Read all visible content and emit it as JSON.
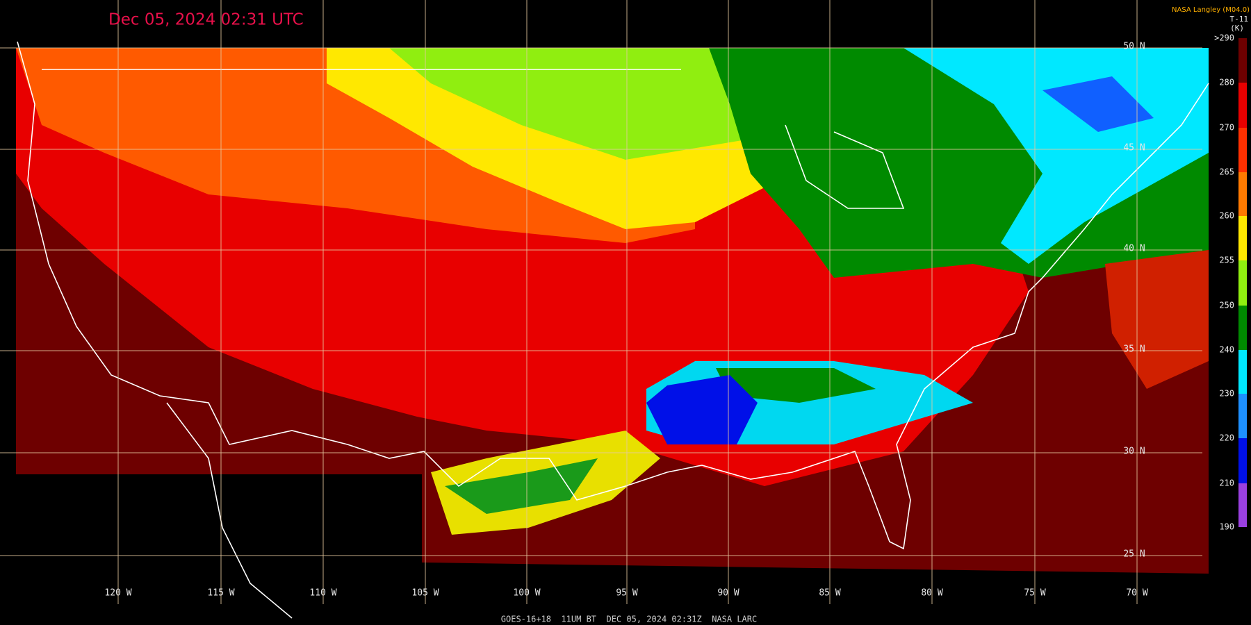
{
  "header": {
    "title": "Dec 05, 2024 02:31 UTC",
    "source": "NASA Langley (M04.0)",
    "channel": "T-11",
    "unit": "(K)"
  },
  "colorbar": {
    "labels": [
      ">290",
      "280",
      "270",
      "265",
      "260",
      "255",
      "250",
      "240",
      "230",
      "220",
      "210",
      "190"
    ]
  },
  "latitudes": [
    "50 N",
    "45 N",
    "40 N",
    "35 N",
    "30 N",
    "25 N"
  ],
  "longitudes": [
    "120 W",
    "115 W",
    "110 W",
    "105 W",
    "100 W",
    "95 W",
    "90 W",
    "85 W",
    "80 W",
    "75 W",
    "70 W"
  ],
  "footer": "GOES-16+18  11UM BT  DEC 05, 2024 02:31Z  NASA LARC"
}
